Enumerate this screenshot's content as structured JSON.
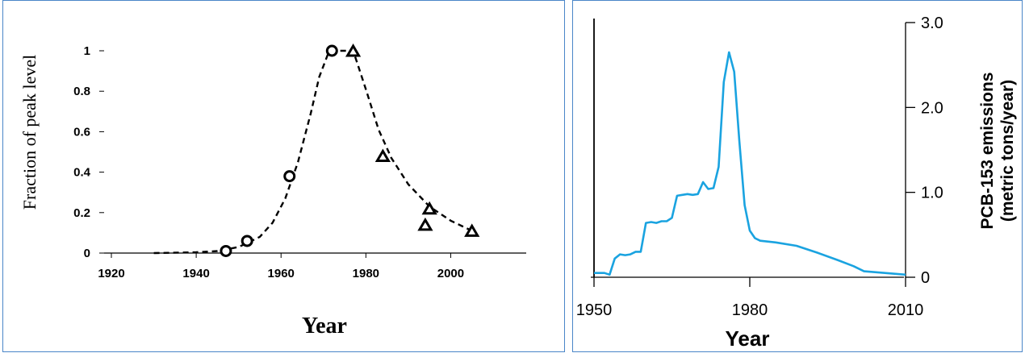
{
  "chart_data": [
    {
      "type": "scatter",
      "title": "",
      "xlabel": "Year",
      "ylabel": "Fraction of peak level",
      "xlim": [
        1920,
        2010
      ],
      "ylim": [
        0,
        1
      ],
      "x_ticks": [
        "1920",
        "1940",
        "1960",
        "1980",
        "2000"
      ],
      "y_ticks": [
        "0",
        "0.2",
        "0.4",
        "0.6",
        "0.8",
        "1"
      ],
      "grid": false,
      "legend": "none",
      "series": [
        {
          "marker": "circle",
          "points": [
            [
              1947,
              0.01
            ],
            [
              1952,
              0.06
            ],
            [
              1962,
              0.38
            ],
            [
              1972,
              1.0
            ]
          ]
        },
        {
          "marker": "triangle",
          "points": [
            [
              1977,
              1.0
            ],
            [
              1984,
              0.48
            ],
            [
              1994,
              0.14
            ],
            [
              1995,
              0.22
            ],
            [
              2005,
              0.11
            ]
          ]
        },
        {
          "type": "line",
          "style": "dashed",
          "points": [
            [
              1930,
              0.0
            ],
            [
              1940,
              0.004
            ],
            [
              1945,
              0.01
            ],
            [
              1950,
              0.03
            ],
            [
              1955,
              0.08
            ],
            [
              1958,
              0.15
            ],
            [
              1961,
              0.27
            ],
            [
              1964,
              0.45
            ],
            [
              1967,
              0.69
            ],
            [
              1969,
              0.87
            ],
            [
              1971,
              0.98
            ],
            [
              1972,
              1.0
            ],
            [
              1975,
              1.0
            ],
            [
              1977,
              1.0
            ],
            [
              1980,
              0.81
            ],
            [
              1983,
              0.61
            ],
            [
              1986,
              0.47
            ],
            [
              1990,
              0.34
            ],
            [
              1995,
              0.23
            ],
            [
              2000,
              0.16
            ],
            [
              2005,
              0.11
            ]
          ]
        }
      ]
    },
    {
      "type": "line",
      "title": "",
      "xlabel": "Year",
      "ylabel_line1": "PCB-153 emissions",
      "ylabel_line2": "(metric tons/year)",
      "xlim": [
        1950,
        2010
      ],
      "ylim": [
        0,
        3.0
      ],
      "x_ticks": [
        "1950",
        "1980",
        "2010"
      ],
      "y_ticks": [
        "0",
        "1.0",
        "2.0",
        "3.0"
      ],
      "color": "#1aa3e0",
      "grid": false,
      "legend": "none",
      "series": [
        {
          "points": [
            [
              1950,
              0.05
            ],
            [
              1952,
              0.05
            ],
            [
              1953,
              0.03
            ],
            [
              1954,
              0.22
            ],
            [
              1955,
              0.27
            ],
            [
              1956,
              0.26
            ],
            [
              1957,
              0.27
            ],
            [
              1958,
              0.3
            ],
            [
              1959,
              0.3
            ],
            [
              1960,
              0.64
            ],
            [
              1961,
              0.65
            ],
            [
              1962,
              0.64
            ],
            [
              1963,
              0.66
            ],
            [
              1964,
              0.66
            ],
            [
              1965,
              0.7
            ],
            [
              1966,
              0.96
            ],
            [
              1967,
              0.97
            ],
            [
              1968,
              0.98
            ],
            [
              1969,
              0.97
            ],
            [
              1970,
              0.98
            ],
            [
              1971,
              1.12
            ],
            [
              1972,
              1.04
            ],
            [
              1973,
              1.05
            ],
            [
              1974,
              1.3
            ],
            [
              1975,
              2.3
            ],
            [
              1976,
              2.65
            ],
            [
              1977,
              2.42
            ],
            [
              1978,
              1.6
            ],
            [
              1979,
              0.85
            ],
            [
              1980,
              0.55
            ],
            [
              1981,
              0.46
            ],
            [
              1982,
              0.43
            ],
            [
              1985,
              0.41
            ],
            [
              1989,
              0.37
            ],
            [
              1993,
              0.29
            ],
            [
              1997,
              0.2
            ],
            [
              2000,
              0.13
            ],
            [
              2002,
              0.07
            ],
            [
              2006,
              0.05
            ],
            [
              2010,
              0.03
            ]
          ]
        }
      ]
    }
  ]
}
